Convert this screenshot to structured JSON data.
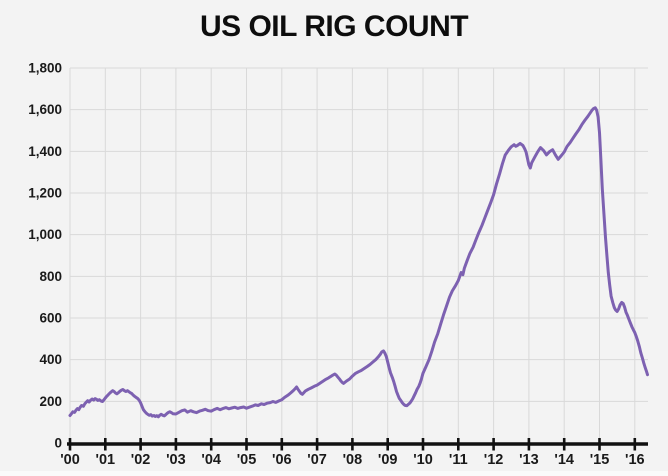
{
  "page": {
    "background_color": "#f3f3f3",
    "footer_strip_color": "#fafafa"
  },
  "header": {
    "title": "US OIL RIG COUNT",
    "title_color": "#0d0d0d"
  },
  "chart_data": {
    "type": "line",
    "title": "US OIL RIG COUNT",
    "xlabel": "",
    "ylabel": "",
    "legend_position": "none",
    "grid": true,
    "x_range": [
      2000,
      2016.4
    ],
    "ylim": [
      0,
      1800
    ],
    "line_color": "#7d61b1",
    "grid_color": "#d9d9d9",
    "axis_color": "#111111",
    "label_color": "#1a1a1a",
    "y_ticks": [
      {
        "value": 0,
        "label": "0"
      },
      {
        "value": 200,
        "label": "200"
      },
      {
        "value": 400,
        "label": "400"
      },
      {
        "value": 600,
        "label": "600"
      },
      {
        "value": 800,
        "label": "800"
      },
      {
        "value": 1000,
        "label": "1,000"
      },
      {
        "value": 1200,
        "label": "1,200"
      },
      {
        "value": 1400,
        "label": "1,400"
      },
      {
        "value": 1600,
        "label": "1,600"
      },
      {
        "value": 1800,
        "label": "1,800"
      }
    ],
    "x_ticks": [
      {
        "value": 2000,
        "label": "'00"
      },
      {
        "value": 2001,
        "label": "'01"
      },
      {
        "value": 2002,
        "label": "'02"
      },
      {
        "value": 2003,
        "label": "'03"
      },
      {
        "value": 2004,
        "label": "'04"
      },
      {
        "value": 2005,
        "label": "'05"
      },
      {
        "value": 2006,
        "label": "'06"
      },
      {
        "value": 2007,
        "label": "'07"
      },
      {
        "value": 2008,
        "label": "'08"
      },
      {
        "value": 2009,
        "label": "'09"
      },
      {
        "value": 2010,
        "label": "'10"
      },
      {
        "value": 2011,
        "label": "'11"
      },
      {
        "value": 2012,
        "label": "'12"
      },
      {
        "value": 2013,
        "label": "'13"
      },
      {
        "value": 2014,
        "label": "'14"
      },
      {
        "value": 2015,
        "label": "'15"
      },
      {
        "value": 2016,
        "label": "'16"
      }
    ],
    "series": [
      {
        "name": "US oil rig count",
        "points": [
          [
            2000.0,
            132
          ],
          [
            2000.04,
            140
          ],
          [
            2000.08,
            150
          ],
          [
            2000.13,
            147
          ],
          [
            2000.17,
            158
          ],
          [
            2000.21,
            165
          ],
          [
            2000.25,
            160
          ],
          [
            2000.29,
            172
          ],
          [
            2000.33,
            180
          ],
          [
            2000.38,
            176
          ],
          [
            2000.42,
            188
          ],
          [
            2000.46,
            196
          ],
          [
            2000.5,
            203
          ],
          [
            2000.54,
            197
          ],
          [
            2000.58,
            205
          ],
          [
            2000.63,
            211
          ],
          [
            2000.67,
            206
          ],
          [
            2000.71,
            213
          ],
          [
            2000.75,
            210
          ],
          [
            2000.79,
            204
          ],
          [
            2000.83,
            208
          ],
          [
            2000.88,
            201
          ],
          [
            2000.92,
            199
          ],
          [
            2000.96,
            207
          ],
          [
            2001.0,
            216
          ],
          [
            2001.04,
            224
          ],
          [
            2001.08,
            231
          ],
          [
            2001.13,
            240
          ],
          [
            2001.17,
            246
          ],
          [
            2001.21,
            251
          ],
          [
            2001.25,
            247
          ],
          [
            2001.29,
            240
          ],
          [
            2001.33,
            236
          ],
          [
            2001.38,
            243
          ],
          [
            2001.42,
            249
          ],
          [
            2001.46,
            254
          ],
          [
            2001.5,
            257
          ],
          [
            2001.54,
            251
          ],
          [
            2001.58,
            247
          ],
          [
            2001.63,
            251
          ],
          [
            2001.67,
            246
          ],
          [
            2001.71,
            241
          ],
          [
            2001.75,
            237
          ],
          [
            2001.79,
            230
          ],
          [
            2001.83,
            224
          ],
          [
            2001.88,
            218
          ],
          [
            2001.92,
            213
          ],
          [
            2001.96,
            205
          ],
          [
            2002.0,
            193
          ],
          [
            2002.04,
            176
          ],
          [
            2002.08,
            160
          ],
          [
            2002.13,
            149
          ],
          [
            2002.17,
            142
          ],
          [
            2002.21,
            137
          ],
          [
            2002.25,
            133
          ],
          [
            2002.29,
            136
          ],
          [
            2002.33,
            129
          ],
          [
            2002.38,
            132
          ],
          [
            2002.42,
            127
          ],
          [
            2002.46,
            131
          ],
          [
            2002.5,
            126
          ],
          [
            2002.54,
            133
          ],
          [
            2002.58,
            138
          ],
          [
            2002.63,
            133
          ],
          [
            2002.67,
            130
          ],
          [
            2002.71,
            136
          ],
          [
            2002.75,
            142
          ],
          [
            2002.79,
            147
          ],
          [
            2002.83,
            150
          ],
          [
            2002.88,
            145
          ],
          [
            2002.92,
            140
          ],
          [
            2003.0,
            139
          ],
          [
            2003.08,
            147
          ],
          [
            2003.17,
            155
          ],
          [
            2003.25,
            159
          ],
          [
            2003.33,
            148
          ],
          [
            2003.42,
            155
          ],
          [
            2003.5,
            150
          ],
          [
            2003.58,
            146
          ],
          [
            2003.67,
            153
          ],
          [
            2003.75,
            157
          ],
          [
            2003.83,
            162
          ],
          [
            2003.92,
            155
          ],
          [
            2004.0,
            153
          ],
          [
            2004.08,
            160
          ],
          [
            2004.17,
            166
          ],
          [
            2004.25,
            160
          ],
          [
            2004.33,
            165
          ],
          [
            2004.42,
            170
          ],
          [
            2004.5,
            164
          ],
          [
            2004.58,
            168
          ],
          [
            2004.67,
            172
          ],
          [
            2004.75,
            166
          ],
          [
            2004.83,
            170
          ],
          [
            2004.92,
            173
          ],
          [
            2005.0,
            167
          ],
          [
            2005.08,
            172
          ],
          [
            2005.17,
            177
          ],
          [
            2005.25,
            183
          ],
          [
            2005.33,
            180
          ],
          [
            2005.42,
            188
          ],
          [
            2005.5,
            185
          ],
          [
            2005.58,
            191
          ],
          [
            2005.67,
            194
          ],
          [
            2005.75,
            199
          ],
          [
            2005.83,
            195
          ],
          [
            2005.92,
            202
          ],
          [
            2006.0,
            208
          ],
          [
            2006.08,
            219
          ],
          [
            2006.17,
            229
          ],
          [
            2006.25,
            240
          ],
          [
            2006.33,
            252
          ],
          [
            2006.38,
            261
          ],
          [
            2006.42,
            269
          ],
          [
            2006.46,
            258
          ],
          [
            2006.5,
            248
          ],
          [
            2006.54,
            238
          ],
          [
            2006.58,
            234
          ],
          [
            2006.67,
            250
          ],
          [
            2006.75,
            258
          ],
          [
            2006.83,
            264
          ],
          [
            2006.92,
            272
          ],
          [
            2007.0,
            278
          ],
          [
            2007.08,
            287
          ],
          [
            2007.17,
            297
          ],
          [
            2007.25,
            306
          ],
          [
            2007.33,
            313
          ],
          [
            2007.42,
            323
          ],
          [
            2007.5,
            331
          ],
          [
            2007.54,
            326
          ],
          [
            2007.58,
            318
          ],
          [
            2007.63,
            308
          ],
          [
            2007.67,
            298
          ],
          [
            2007.71,
            291
          ],
          [
            2007.75,
            286
          ],
          [
            2007.83,
            297
          ],
          [
            2007.92,
            307
          ],
          [
            2008.0,
            321
          ],
          [
            2008.08,
            333
          ],
          [
            2008.17,
            342
          ],
          [
            2008.25,
            348
          ],
          [
            2008.33,
            357
          ],
          [
            2008.42,
            367
          ],
          [
            2008.5,
            377
          ],
          [
            2008.58,
            389
          ],
          [
            2008.67,
            402
          ],
          [
            2008.75,
            417
          ],
          [
            2008.79,
            426
          ],
          [
            2008.83,
            437
          ],
          [
            2008.88,
            442
          ],
          [
            2008.92,
            431
          ],
          [
            2008.96,
            415
          ],
          [
            2009.0,
            389
          ],
          [
            2009.04,
            362
          ],
          [
            2009.08,
            337
          ],
          [
            2009.13,
            315
          ],
          [
            2009.17,
            295
          ],
          [
            2009.21,
            272
          ],
          [
            2009.25,
            247
          ],
          [
            2009.29,
            230
          ],
          [
            2009.33,
            214
          ],
          [
            2009.38,
            202
          ],
          [
            2009.42,
            192
          ],
          [
            2009.46,
            185
          ],
          [
            2009.5,
            180
          ],
          [
            2009.54,
            179
          ],
          [
            2009.58,
            185
          ],
          [
            2009.63,
            192
          ],
          [
            2009.67,
            202
          ],
          [
            2009.71,
            213
          ],
          [
            2009.75,
            227
          ],
          [
            2009.79,
            241
          ],
          [
            2009.83,
            257
          ],
          [
            2009.88,
            272
          ],
          [
            2009.92,
            289
          ],
          [
            2009.96,
            310
          ],
          [
            2010.0,
            335
          ],
          [
            2010.08,
            365
          ],
          [
            2010.17,
            400
          ],
          [
            2010.25,
            440
          ],
          [
            2010.33,
            485
          ],
          [
            2010.42,
            525
          ],
          [
            2010.5,
            570
          ],
          [
            2010.58,
            615
          ],
          [
            2010.67,
            660
          ],
          [
            2010.75,
            700
          ],
          [
            2010.83,
            730
          ],
          [
            2010.92,
            755
          ],
          [
            2011.0,
            780
          ],
          [
            2011.08,
            818
          ],
          [
            2011.13,
            808
          ],
          [
            2011.17,
            838
          ],
          [
            2011.25,
            875
          ],
          [
            2011.33,
            910
          ],
          [
            2011.42,
            940
          ],
          [
            2011.5,
            975
          ],
          [
            2011.58,
            1010
          ],
          [
            2011.67,
            1045
          ],
          [
            2011.75,
            1080
          ],
          [
            2011.83,
            1115
          ],
          [
            2011.92,
            1155
          ],
          [
            2012.0,
            1192
          ],
          [
            2012.08,
            1242
          ],
          [
            2012.17,
            1292
          ],
          [
            2012.25,
            1340
          ],
          [
            2012.33,
            1382
          ],
          [
            2012.42,
            1405
          ],
          [
            2012.5,
            1422
          ],
          [
            2012.58,
            1432
          ],
          [
            2012.63,
            1424
          ],
          [
            2012.67,
            1428
          ],
          [
            2012.75,
            1438
          ],
          [
            2012.83,
            1428
          ],
          [
            2012.88,
            1412
          ],
          [
            2012.92,
            1396
          ],
          [
            2012.96,
            1365
          ],
          [
            2013.0,
            1335
          ],
          [
            2013.04,
            1320
          ],
          [
            2013.08,
            1345
          ],
          [
            2013.17,
            1374
          ],
          [
            2013.25,
            1398
          ],
          [
            2013.33,
            1418
          ],
          [
            2013.42,
            1403
          ],
          [
            2013.5,
            1383
          ],
          [
            2013.58,
            1398
          ],
          [
            2013.67,
            1408
          ],
          [
            2013.75,
            1383
          ],
          [
            2013.83,
            1362
          ],
          [
            2013.92,
            1380
          ],
          [
            2014.0,
            1397
          ],
          [
            2014.08,
            1423
          ],
          [
            2014.17,
            1443
          ],
          [
            2014.25,
            1463
          ],
          [
            2014.33,
            1483
          ],
          [
            2014.42,
            1505
          ],
          [
            2014.5,
            1528
          ],
          [
            2014.58,
            1548
          ],
          [
            2014.67,
            1568
          ],
          [
            2014.75,
            1588
          ],
          [
            2014.79,
            1598
          ],
          [
            2014.83,
            1605
          ],
          [
            2014.88,
            1609
          ],
          [
            2014.92,
            1597
          ],
          [
            2014.96,
            1565
          ],
          [
            2015.0,
            1490
          ],
          [
            2015.04,
            1358
          ],
          [
            2015.08,
            1220
          ],
          [
            2015.13,
            1088
          ],
          [
            2015.17,
            986
          ],
          [
            2015.21,
            900
          ],
          [
            2015.25,
            818
          ],
          [
            2015.29,
            758
          ],
          [
            2015.33,
            705
          ],
          [
            2015.38,
            672
          ],
          [
            2015.42,
            650
          ],
          [
            2015.46,
            638
          ],
          [
            2015.5,
            631
          ],
          [
            2015.54,
            643
          ],
          [
            2015.58,
            662
          ],
          [
            2015.63,
            675
          ],
          [
            2015.67,
            669
          ],
          [
            2015.71,
            652
          ],
          [
            2015.75,
            628
          ],
          [
            2015.79,
            613
          ],
          [
            2015.83,
            595
          ],
          [
            2015.88,
            573
          ],
          [
            2015.92,
            557
          ],
          [
            2015.96,
            543
          ],
          [
            2016.0,
            530
          ],
          [
            2016.04,
            512
          ],
          [
            2016.08,
            492
          ],
          [
            2016.13,
            462
          ],
          [
            2016.17,
            433
          ],
          [
            2016.21,
            411
          ],
          [
            2016.25,
            387
          ],
          [
            2016.29,
            365
          ],
          [
            2016.33,
            345
          ],
          [
            2016.36,
            328
          ]
        ]
      }
    ]
  }
}
